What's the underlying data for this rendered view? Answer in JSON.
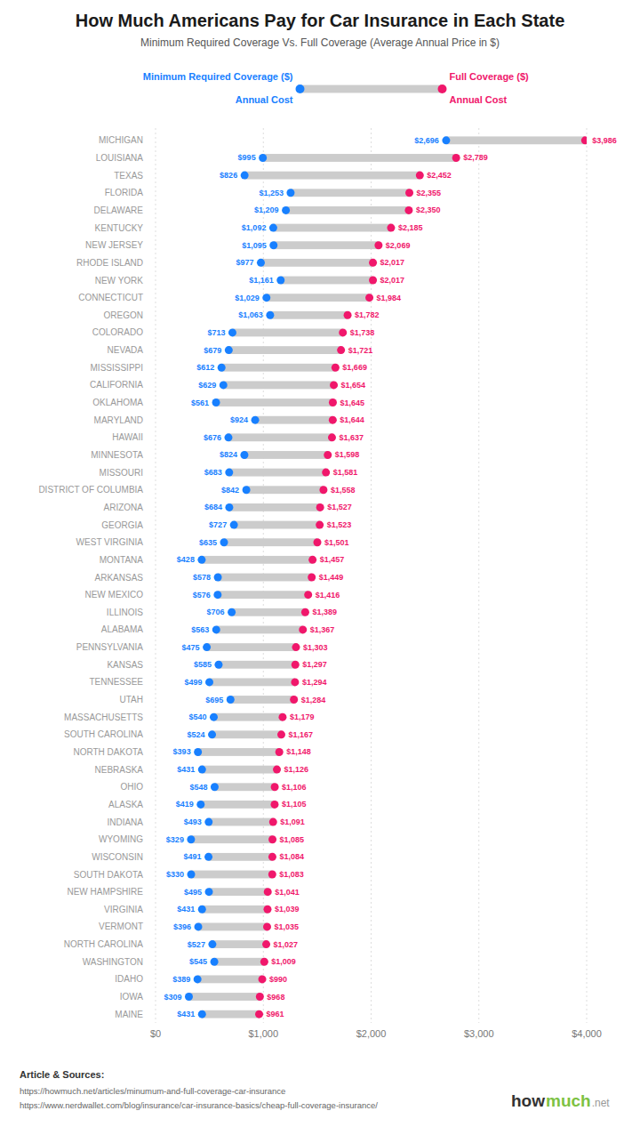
{
  "chart_data": {
    "type": "dumbbell",
    "orientation": "horizontal",
    "title": "How Much Americans Pay for Car Insurance in Each State",
    "subtitle": "Minimum Required Coverage Vs. Full Coverage (Average Annual Price in $)",
    "categories": [
      "MICHIGAN",
      "LOUISIANA",
      "TEXAS",
      "FLORIDA",
      "DELAWARE",
      "KENTUCKY",
      "NEW JERSEY",
      "RHODE ISLAND",
      "NEW YORK",
      "CONNECTICUT",
      "OREGON",
      "COLORADO",
      "NEVADA",
      "MISSISSIPPI",
      "CALIFORNIA",
      "OKLAHOMA",
      "MARYLAND",
      "HAWAII",
      "MINNESOTA",
      "MISSOURI",
      "DISTRICT OF COLUMBIA",
      "ARIZONA",
      "GEORGIA",
      "WEST VIRGINIA",
      "MONTANA",
      "ARKANSAS",
      "NEW MEXICO",
      "ILLINOIS",
      "ALABAMA",
      "PENNSYLVANIA",
      "KANSAS",
      "TENNESSEE",
      "UTAH",
      "MASSACHUSETTS",
      "SOUTH CAROLINA",
      "NORTH DAKOTA",
      "NEBRASKA",
      "OHIO",
      "ALASKA",
      "INDIANA",
      "WYOMING",
      "WISCONSIN",
      "SOUTH DAKOTA",
      "NEW HAMPSHIRE",
      "VIRGINIA",
      "VERMONT",
      "NORTH CAROLINA",
      "WASHINGTON",
      "IDAHO",
      "IOWA",
      "MAINE"
    ],
    "color": "#CCCCCC",
    "series": [
      {
        "name": "Minimum Required Coverage ($)",
        "color": "#1880FF",
        "values": [
          2696,
          995,
          826,
          1253,
          1209,
          1092,
          1095,
          977,
          1161,
          1029,
          1063,
          713,
          679,
          612,
          629,
          561,
          924,
          676,
          824,
          683,
          842,
          684,
          727,
          635,
          428,
          578,
          576,
          706,
          563,
          475,
          585,
          499,
          695,
          540,
          524,
          393,
          431,
          548,
          419,
          493,
          329,
          491,
          330,
          495,
          431,
          396,
          527,
          545,
          389,
          309,
          431
        ],
        "value_labels": [
          "$2,696",
          "$995",
          "$826",
          "$1,253",
          "$1,209",
          "$1,092",
          "$1,095",
          "$977",
          "$1,161",
          "$1,029",
          "$1,063",
          "$713",
          "$679",
          "$612",
          "$629",
          "$561",
          "$924",
          "$676",
          "$824",
          "$683",
          "$842",
          "$684",
          "$727",
          "$635",
          "$428",
          "$578",
          "$576",
          "$706",
          "$563",
          "$475",
          "$585",
          "$499",
          "$695",
          "$540",
          "$524",
          "$393",
          "$431",
          "$548",
          "$419",
          "$493",
          "$329",
          "$491",
          "$330",
          "$495",
          "$431",
          "$396",
          "$527",
          "$545",
          "$389",
          "$309",
          "$431"
        ]
      },
      {
        "name": "Full Coverage ($)",
        "color": "#F0176B",
        "values": [
          3986,
          2789,
          2452,
          2355,
          2350,
          2185,
          2069,
          2017,
          2017,
          1984,
          1782,
          1738,
          1721,
          1669,
          1654,
          1645,
          1644,
          1637,
          1598,
          1581,
          1558,
          1527,
          1523,
          1501,
          1457,
          1449,
          1416,
          1389,
          1367,
          1303,
          1297,
          1294,
          1284,
          1179,
          1167,
          1148,
          1126,
          1106,
          1105,
          1091,
          1085,
          1084,
          1083,
          1041,
          1039,
          1035,
          1027,
          1009,
          990,
          968,
          961
        ],
        "value_labels": [
          "$3,986",
          "$2,789",
          "$2,452",
          "$2,355",
          "$2,350",
          "$2,185",
          "$2,069",
          "$2,017",
          "$2,017",
          "$1,984",
          "$1,782",
          "$1,738",
          "$1,721",
          "$1,669",
          "$1,654",
          "$1,645",
          "$1,644",
          "$1,637",
          "$1,598",
          "$1,581",
          "$1,558",
          "$1,527",
          "$1,523",
          "$1,501",
          "$1,457",
          "$1,449",
          "$1,416",
          "$1,389",
          "$1,367",
          "$1,303",
          "$1,297",
          "$1,294",
          "$1,284",
          "$1,179",
          "$1,167",
          "$1,148",
          "$1,126",
          "$1,106",
          "$1,105",
          "$1,091",
          "$1,085",
          "$1,084",
          "$1,083",
          "$1,041",
          "$1,039",
          "$1,035",
          "$1,027",
          "$1,009",
          "$990",
          "$968",
          "$961"
        ]
      }
    ],
    "data_labels": true,
    "xlim": [
      0,
      4000
    ],
    "xticks": [
      {
        "value": 0,
        "label": "$0"
      },
      {
        "value": 1000,
        "label": "$1,000"
      },
      {
        "value": 2000,
        "label": "$2,000"
      },
      {
        "value": 3000,
        "label": "$3,000"
      },
      {
        "value": 4000,
        "label": "$4,000"
      }
    ],
    "grid": true,
    "legend": "top",
    "annotations": [
      {
        "text": "Annual Cost",
        "color": "#1880FF"
      },
      {
        "text": "Annual Cost",
        "color": "#F0176B"
      },
      {
        "text": "Article & Sources:"
      },
      {
        "text": "https://howmuch.net/articles/minumum-and-full-coverage-car-insurance"
      },
      {
        "text": "https://www.nerdwallet.com/blog/insurance/car-insurance-basics/cheap-full-coverage-insurance/"
      },
      {
        "text": "how",
        "color": "#333333"
      },
      {
        "text": "much",
        "color": "#7DC243"
      },
      {
        "text": ".net",
        "color": "#999999"
      }
    ]
  }
}
